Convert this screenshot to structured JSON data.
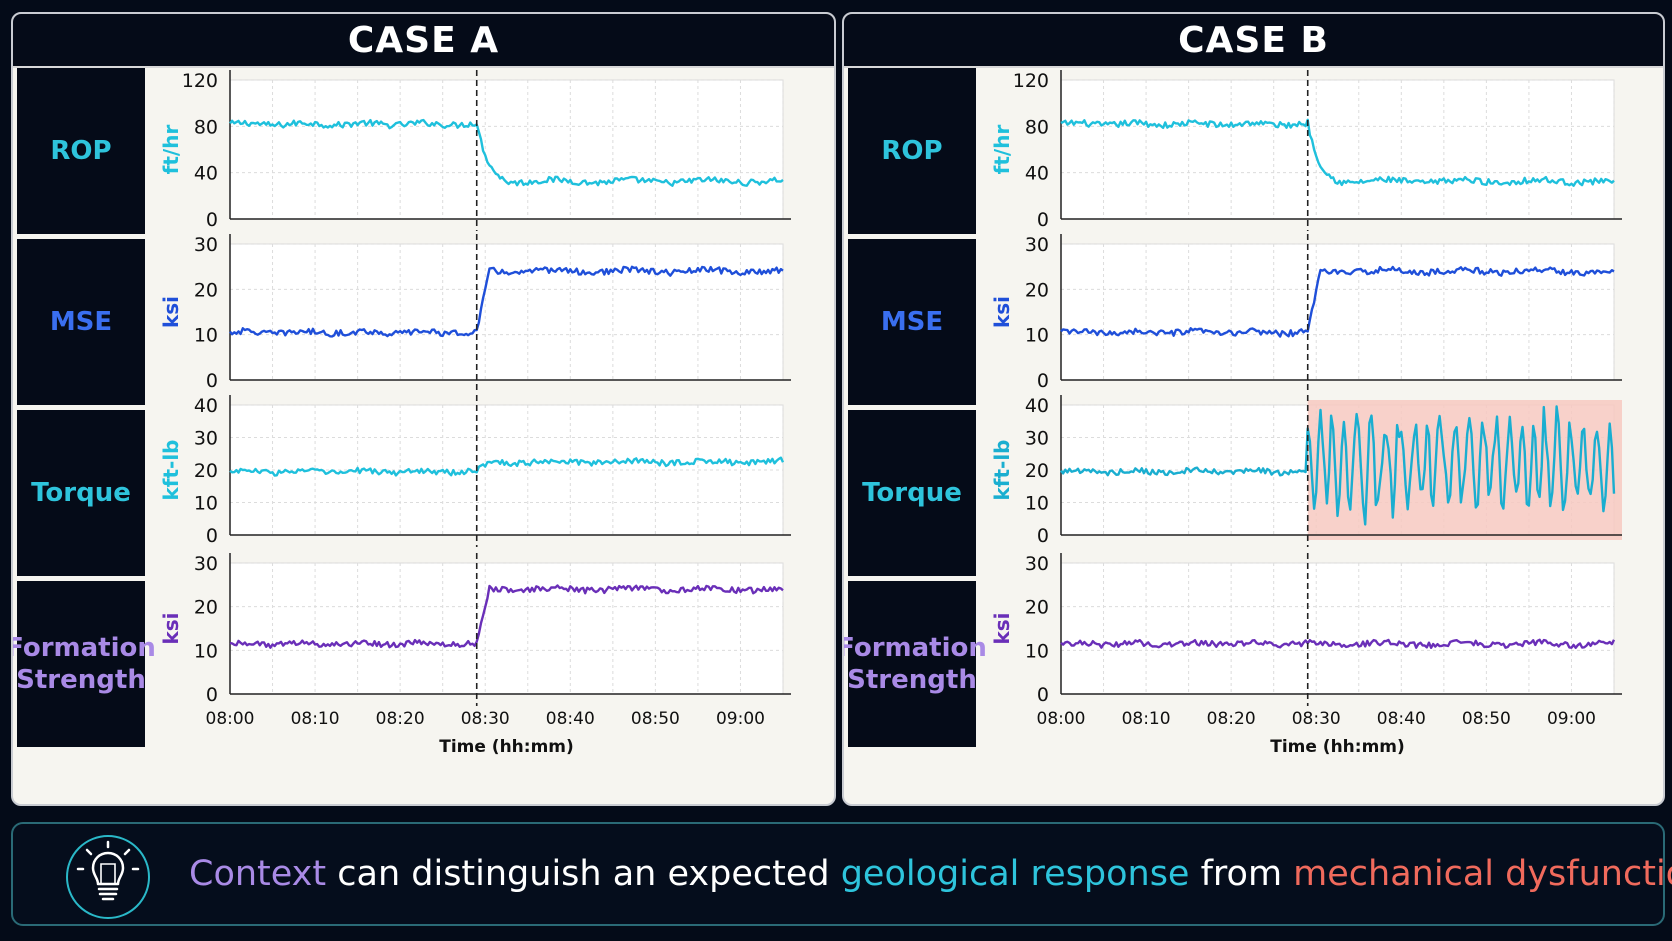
{
  "panels": [
    {
      "id": "a",
      "title": "CASE A",
      "xlabel": "Time (hh:mm)",
      "x_ticks": [
        "08:00",
        "08:10",
        "08:20",
        "08:30",
        "08:40",
        "08:50",
        "09:00"
      ],
      "event_time": "08:29",
      "charts": [
        {
          "label": "ROP",
          "unit": "ft/hr",
          "ylim": [
            0,
            120
          ],
          "yticks": [
            0,
            40,
            80,
            120
          ],
          "color": "#1fc0dc",
          "pre": 82,
          "post": 30
        },
        {
          "label": "MSE",
          "unit": "ksi",
          "ylim": [
            0,
            30
          ],
          "yticks": [
            0,
            10,
            20,
            30
          ],
          "color": "#1f4fd9",
          "pre": 10.5,
          "post": 24
        },
        {
          "label": "Torque",
          "unit": "kft-lb",
          "ylim": [
            0,
            40
          ],
          "yticks": [
            0,
            10,
            20,
            30,
            40
          ],
          "color": "#1fc0dc",
          "pre": 19.5,
          "post": 22.5
        },
        {
          "label_lines": [
            "Formation",
            "Strength"
          ],
          "unit": "ksi",
          "ylim": [
            0,
            30
          ],
          "yticks": [
            0,
            10,
            20,
            30
          ],
          "color": "#6a2fb8",
          "pre": 11.5,
          "post": 24
        }
      ]
    },
    {
      "id": "b",
      "title": "CASE B",
      "xlabel": "Time (hh:mm)",
      "x_ticks": [
        "08:00",
        "08:10",
        "08:20",
        "08:30",
        "08:40",
        "08:50",
        "09:00"
      ],
      "event_time": "08:29",
      "charts": [
        {
          "label": "ROP",
          "unit": "ft/hr",
          "ylim": [
            0,
            120
          ],
          "yticks": [
            0,
            40,
            80,
            120
          ],
          "color": "#1fc0dc",
          "pre": 82,
          "post": 30
        },
        {
          "label": "MSE",
          "unit": "ksi",
          "ylim": [
            0,
            30
          ],
          "yticks": [
            0,
            10,
            20,
            30
          ],
          "color": "#1f4fd9",
          "pre": 10.5,
          "post": 24
        },
        {
          "label": "Torque",
          "unit": "kft-lb",
          "ylim": [
            0,
            40
          ],
          "yticks": [
            0,
            10,
            20,
            30,
            40
          ],
          "color": "#1aaed0",
          "pre": 19.5,
          "post": 22,
          "oscillation": [
            5,
            40
          ],
          "highlight_color": "#f7c9c1"
        },
        {
          "label_lines": [
            "Formation",
            "Strength"
          ],
          "unit": "ksi",
          "ylim": [
            0,
            30
          ],
          "yticks": [
            0,
            10,
            20,
            30
          ],
          "color": "#6a2fb8",
          "pre": 11.5,
          "post": 11.5
        }
      ]
    }
  ],
  "colors": {
    "rop": "#1fc0dc",
    "mse": "#1f4fd9",
    "formation": "#6a2fb8",
    "context": "#a98ae6",
    "geological": "#2ec4dc",
    "mechanical": "#f06a5c"
  },
  "banner": {
    "icon": "lightbulb-icon",
    "w1": "Context",
    "w2": " can distinguish an expected ",
    "w3": "geological response",
    "w4": " from ",
    "w5": "mechanical dysfunction."
  }
}
